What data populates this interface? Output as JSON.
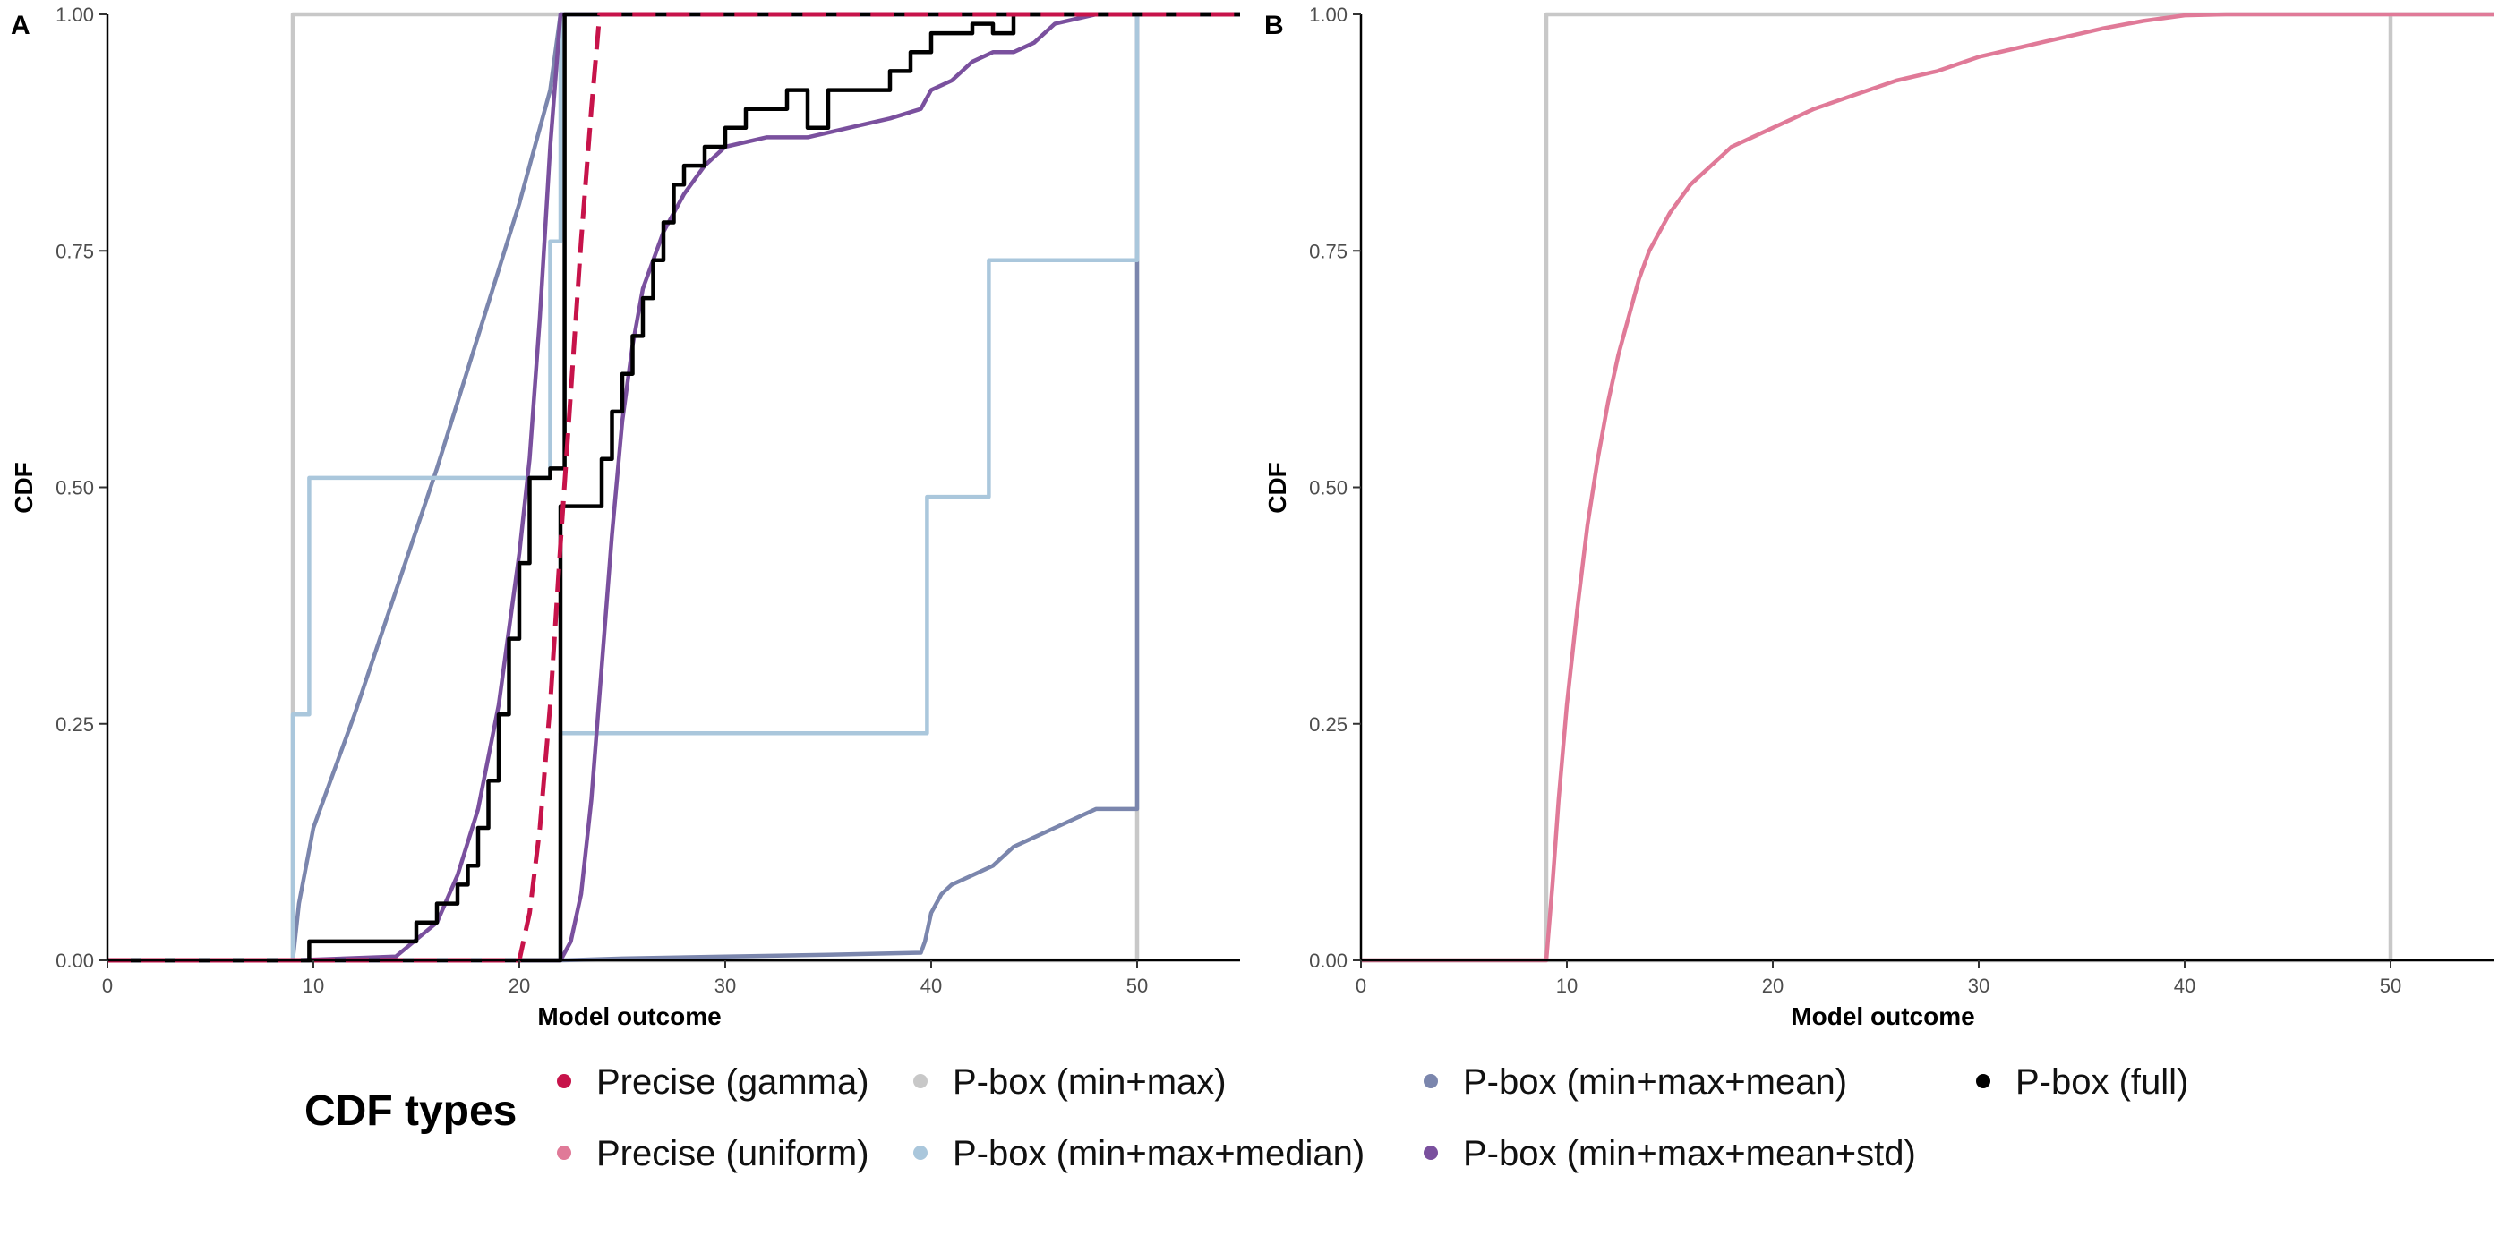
{
  "chart_data": [
    {
      "panel": "A",
      "type": "line",
      "step_style": true,
      "xlabel": "Model outcome",
      "ylabel": "CDF",
      "xlim": [
        0,
        55
      ],
      "ylim": [
        0,
        1
      ],
      "xticks": [
        0,
        10,
        20,
        30,
        40,
        50
      ],
      "yticks": [
        0,
        0.25,
        0.5,
        0.75,
        1
      ],
      "ytick_labels": [
        "0.00",
        "0.25",
        "0.50",
        "0.75",
        "1.00"
      ],
      "series": [
        {
          "name": "P-box (min+max) lower",
          "legend": "P-box (min+max)",
          "color": "#c8c8c8",
          "x": [
            0,
            50,
            50,
            55
          ],
          "y": [
            0,
            0,
            1,
            1
          ]
        },
        {
          "name": "P-box (min+max) upper",
          "legend": "P-box (min+max)",
          "color": "#c8c8c8",
          "x": [
            0,
            9,
            9,
            55
          ],
          "y": [
            0,
            0,
            1,
            1
          ]
        },
        {
          "name": "P-box (min+max+mean) upper",
          "legend": "P-box (min+max+mean)",
          "color": "#7b86ad",
          "x": [
            0,
            9,
            9.3,
            10,
            12,
            14,
            16,
            18,
            20,
            21.5,
            22,
            55
          ],
          "y": [
            0,
            0,
            0.06,
            0.14,
            0.26,
            0.39,
            0.52,
            0.66,
            0.8,
            0.92,
            1,
            1
          ]
        },
        {
          "name": "P-box (min+max+mean) lower",
          "legend": "P-box (min+max+mean)",
          "color": "#7b86ad",
          "x": [
            0,
            22,
            25,
            30,
            35,
            39.5,
            39.7,
            40,
            40.5,
            41,
            42,
            43,
            44,
            45,
            46,
            48,
            50,
            50,
            55
          ],
          "y": [
            0,
            0,
            0.002,
            0.004,
            0.006,
            0.008,
            0.02,
            0.05,
            0.07,
            0.08,
            0.09,
            0.1,
            0.12,
            0.13,
            0.14,
            0.16,
            0.16,
            1,
            1
          ]
        },
        {
          "name": "P-box (min+max+median) upper",
          "legend": "P-box (min+max+median)",
          "color": "#aac7dc",
          "x": [
            0,
            9,
            9,
            9.8,
            9.8,
            21.5,
            21.5,
            22,
            22,
            55
          ],
          "y": [
            0,
            0,
            0.26,
            0.26,
            0.51,
            0.51,
            0.76,
            0.76,
            1,
            1
          ]
        },
        {
          "name": "P-box (min+max+median) lower",
          "legend": "P-box (min+max+median)",
          "color": "#aac7dc",
          "x": [
            0,
            22,
            22,
            39.8,
            39.8,
            42.8,
            42.8,
            50,
            50,
            55
          ],
          "y": [
            0,
            0,
            0.24,
            0.24,
            0.49,
            0.49,
            0.74,
            0.74,
            1,
            1
          ]
        },
        {
          "name": "P-box (min+max+mean+std) upper",
          "legend": "P-box (min+max+mean+std)",
          "color": "#7a509e",
          "x": [
            0,
            9,
            14,
            16,
            17,
            18,
            19,
            20,
            20.5,
            21,
            21.5,
            22,
            55
          ],
          "y": [
            0,
            0,
            0.004,
            0.04,
            0.09,
            0.16,
            0.27,
            0.43,
            0.53,
            0.68,
            0.86,
            1,
            1
          ]
        },
        {
          "name": "P-box (min+max+mean+std) lower",
          "legend": "P-box (min+max+mean+std)",
          "color": "#7a509e",
          "x": [
            0,
            22,
            22.5,
            23,
            23.5,
            24,
            24.5,
            25,
            25.5,
            26,
            27,
            28,
            29,
            30,
            32,
            34,
            36,
            38,
            39.5,
            40,
            41,
            42,
            43,
            44,
            45,
            46,
            48,
            50,
            55
          ],
          "y": [
            0,
            0,
            0.02,
            0.07,
            0.17,
            0.31,
            0.45,
            0.57,
            0.65,
            0.71,
            0.77,
            0.81,
            0.84,
            0.86,
            0.87,
            0.87,
            0.88,
            0.89,
            0.9,
            0.92,
            0.93,
            0.95,
            0.96,
            0.96,
            0.97,
            0.99,
            1,
            1,
            1
          ]
        },
        {
          "name": "P-box (full) upper",
          "legend": "P-box (full)",
          "color": "#000000",
          "x": [
            0,
            9.8,
            9.8,
            15,
            15,
            16,
            16,
            17,
            17,
            17.5,
            17.5,
            18,
            18,
            18.5,
            18.5,
            19,
            19,
            19.5,
            19.5,
            20,
            20,
            20.5,
            20.5,
            21,
            21,
            21.5,
            21.5,
            22.2,
            22.2,
            55
          ],
          "y": [
            0,
            0,
            0.02,
            0.02,
            0.04,
            0.04,
            0.06,
            0.06,
            0.08,
            0.08,
            0.1,
            0.1,
            0.14,
            0.14,
            0.19,
            0.19,
            0.26,
            0.26,
            0.34,
            0.34,
            0.42,
            0.42,
            0.51,
            0.51,
            0.51,
            0.51,
            0.52,
            0.52,
            1,
            1
          ]
        },
        {
          "name": "P-box (full) lower",
          "legend": "P-box (full)",
          "color": "#000000",
          "x": [
            0,
            22,
            22,
            24,
            24,
            24.5,
            24.5,
            25,
            25,
            25.5,
            25.5,
            26,
            26,
            26.5,
            26.5,
            27,
            27,
            27.5,
            27.5,
            28,
            28,
            29,
            29,
            30,
            30,
            31,
            31,
            33,
            33,
            34,
            34,
            35,
            35,
            38,
            38,
            39,
            39,
            40,
            40,
            42,
            42,
            43,
            43,
            44,
            44,
            45,
            45,
            55
          ],
          "y": [
            0,
            0,
            0.48,
            0.48,
            0.53,
            0.53,
            0.58,
            0.58,
            0.62,
            0.62,
            0.66,
            0.66,
            0.7,
            0.7,
            0.74,
            0.74,
            0.78,
            0.78,
            0.82,
            0.82,
            0.84,
            0.84,
            0.86,
            0.86,
            0.88,
            0.88,
            0.9,
            0.9,
            0.92,
            0.92,
            0.88,
            0.88,
            0.92,
            0.92,
            0.94,
            0.94,
            0.96,
            0.96,
            0.98,
            0.98,
            0.99,
            0.99,
            0.98,
            0.98,
            1,
            1,
            1,
            1
          ]
        },
        {
          "name": "Precise (gamma)",
          "legend": "Precise (gamma)",
          "color": "#c7134a",
          "dash": true,
          "x": [
            0,
            20,
            20.5,
            21,
            21.5,
            22,
            22.5,
            23,
            23.5,
            23.9,
            55
          ],
          "y": [
            0,
            0,
            0.05,
            0.14,
            0.27,
            0.44,
            0.6,
            0.76,
            0.9,
            1,
            1
          ]
        }
      ]
    },
    {
      "panel": "B",
      "type": "line",
      "xlabel": "Model outcome",
      "ylabel": "CDF",
      "xlim": [
        0,
        55
      ],
      "ylim": [
        0,
        1
      ],
      "xticks": [
        0,
        10,
        20,
        30,
        40,
        50
      ],
      "yticks": [
        0,
        0.25,
        0.5,
        0.75,
        1
      ],
      "ytick_labels": [
        "0.00",
        "0.25",
        "0.50",
        "0.75",
        "1.00"
      ],
      "series": [
        {
          "name": "P-box (min+max) lower",
          "legend": "P-box (min+max)",
          "color": "#c8c8c8",
          "x": [
            0,
            50,
            50,
            55
          ],
          "y": [
            0,
            0,
            1,
            1
          ]
        },
        {
          "name": "P-box (min+max) upper",
          "legend": "P-box (min+max)",
          "color": "#c8c8c8",
          "x": [
            0,
            9,
            9,
            55
          ],
          "y": [
            0,
            0,
            1,
            1
          ]
        },
        {
          "name": "Precise (uniform)",
          "legend": "Precise (uniform)",
          "color": "#e07a98",
          "x": [
            0,
            9,
            9.3,
            9.6,
            10,
            10.5,
            11,
            11.5,
            12,
            12.5,
            13,
            13.5,
            14,
            14.5,
            15,
            16,
            17,
            18,
            19,
            20,
            22,
            24,
            26,
            28,
            30,
            32,
            34,
            36,
            38,
            40,
            42,
            55
          ],
          "y": [
            0,
            0,
            0.08,
            0.17,
            0.27,
            0.37,
            0.46,
            0.53,
            0.59,
            0.64,
            0.68,
            0.72,
            0.75,
            0.77,
            0.79,
            0.82,
            0.84,
            0.86,
            0.87,
            0.88,
            0.9,
            0.915,
            0.93,
            0.94,
            0.955,
            0.965,
            0.975,
            0.985,
            0.993,
            0.999,
            1,
            1
          ]
        }
      ]
    }
  ],
  "legend": {
    "title": "CDF types",
    "entries": [
      {
        "label": "Precise (gamma)",
        "color": "#c7134a"
      },
      {
        "label": "Precise (uniform)",
        "color": "#e07a98"
      },
      {
        "label": "P-box (min+max)",
        "color": "#c8c8c8"
      },
      {
        "label": "P-box (min+max+median)",
        "color": "#aac7dc"
      },
      {
        "label": "P-box (min+max+mean)",
        "color": "#7b86ad"
      },
      {
        "label": "P-box (min+max+mean+std)",
        "color": "#7a509e"
      },
      {
        "label": "P-box (full)",
        "color": "#000000"
      }
    ]
  }
}
